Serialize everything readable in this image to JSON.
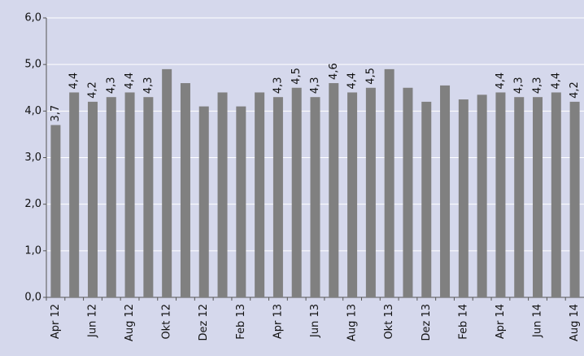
{
  "chart_data": {
    "type": "bar",
    "categories": [
      "Apr 12",
      null,
      "Jun 12",
      null,
      "Aug 12",
      null,
      "Okt 12",
      null,
      "Dez 12",
      null,
      "Feb 13",
      null,
      "Apr 13",
      null,
      "Jun 13",
      null,
      "Aug 13",
      null,
      "Okt 13",
      null,
      "Dez 13",
      null,
      "Feb 14",
      null,
      "Apr 14",
      null,
      "Jun 14",
      null,
      "Aug 14"
    ],
    "values": [
      3.7,
      4.4,
      4.2,
      4.3,
      4.4,
      4.3,
      4.9,
      4.6,
      4.1,
      4.4,
      4.1,
      4.4,
      4.3,
      4.5,
      4.3,
      4.6,
      4.4,
      4.5,
      4.9,
      4.5,
      4.2,
      4.55,
      4.25,
      4.35,
      4.4,
      4.3,
      4.3,
      4.4,
      4.2
    ],
    "value_labels": [
      "3,7",
      "4,4",
      "4,2",
      "4,3",
      "4,4",
      "4,3",
      null,
      null,
      null,
      null,
      null,
      null,
      "4,3",
      "4,5",
      "4,3",
      "4,6",
      "4,4",
      "4,5",
      null,
      null,
      null,
      null,
      null,
      null,
      "4,4",
      "4,3",
      "4,3",
      "4,4",
      "4,2"
    ],
    "color": "#808080",
    "ylim": [
      0,
      6
    ],
    "yticks": [
      {
        "value": 0,
        "label": "0,0"
      },
      {
        "value": 1,
        "label": "1,0"
      },
      {
        "value": 2,
        "label": "2,0"
      },
      {
        "value": 3,
        "label": "3,0"
      },
      {
        "value": 4,
        "label": "4,0"
      },
      {
        "value": 5,
        "label": "5,0"
      },
      {
        "value": 6,
        "label": "6,0"
      }
    ],
    "grid": true
  }
}
